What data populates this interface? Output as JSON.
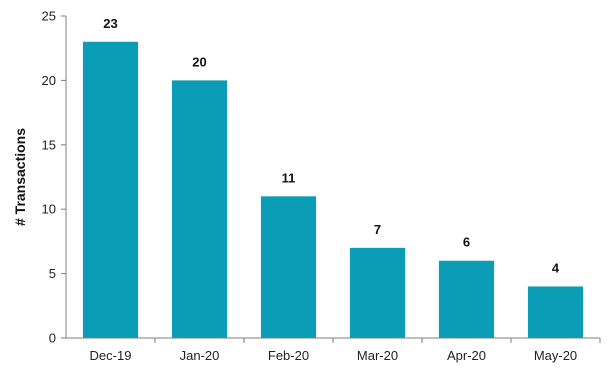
{
  "chart_data": {
    "type": "bar",
    "title": "",
    "xlabel": "",
    "ylabel": "# Transactions",
    "categories": [
      "Dec-19",
      "Jan-20",
      "Feb-20",
      "Mar-20",
      "Apr-20",
      "May-20"
    ],
    "values": [
      23,
      20,
      11,
      7,
      6,
      4
    ],
    "ylim": [
      0,
      25
    ],
    "yticks": [
      0,
      5,
      10,
      15,
      20,
      25
    ],
    "grid": false,
    "legend": "none",
    "bar_color": "#0A9DB5",
    "axis_color": "#7F7F7F"
  }
}
